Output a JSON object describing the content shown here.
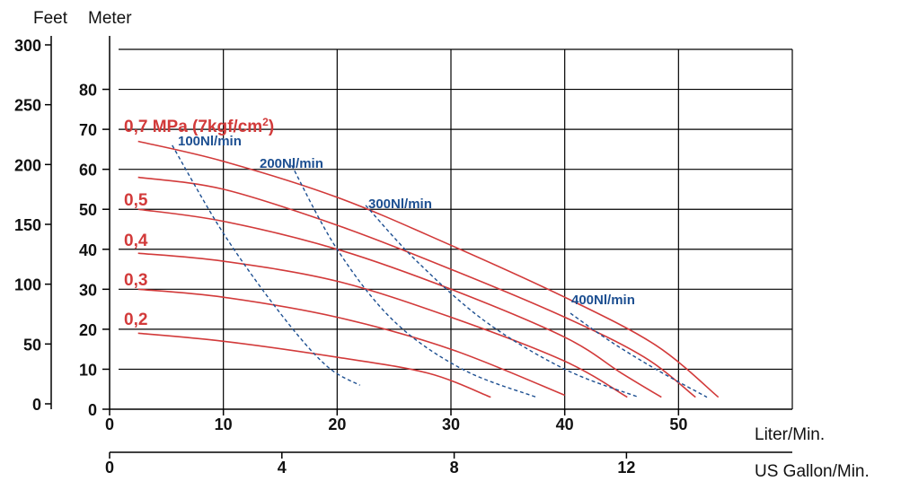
{
  "chart_data": {
    "type": "line",
    "title": "",
    "colors": {
      "pressure": "#d23a3a",
      "flow": "#1d4f91",
      "grid": "#000000"
    },
    "axes": {
      "feet": {
        "label": "Feet",
        "ticks": [
          "300",
          "250",
          "200",
          "150",
          "100",
          "50",
          "0"
        ],
        "ticks_values": [
          300,
          250,
          200,
          150,
          100,
          50,
          0
        ],
        "range": [
          0,
          300
        ]
      },
      "meter": {
        "label": "Meter",
        "ticks": [
          "80",
          "70",
          "60",
          "50",
          "40",
          "30",
          "20",
          "10",
          "0"
        ],
        "ticks_values": [
          80,
          70,
          60,
          50,
          40,
          30,
          20,
          10,
          0
        ],
        "range": [
          0,
          90
        ]
      },
      "liter": {
        "label": "Liter/Min.",
        "ticks": [
          "0",
          "10",
          "20",
          "30",
          "40",
          "50"
        ],
        "ticks_values": [
          0,
          10,
          20,
          30,
          40,
          50
        ],
        "range": [
          0,
          60
        ]
      },
      "gallon": {
        "label": "US Gallon/Min.",
        "ticks": [
          "0",
          "4",
          "8",
          "12"
        ],
        "ticks_values": [
          0,
          4,
          8,
          12
        ],
        "range": [
          0,
          15.85
        ]
      }
    },
    "grid": true,
    "series": [
      {
        "name": "0,7 MPa (7kgf/cm²)",
        "kind": "pressure",
        "label_words": [
          "0,7 MPa (7kgf/cm",
          "2",
          ")"
        ],
        "x": [
          2.5,
          10,
          20,
          30,
          40,
          48,
          53.5
        ],
        "y": [
          67,
          62,
          53,
          41,
          28,
          16,
          3
        ]
      },
      {
        "name": "",
        "kind": "pressure",
        "x": [
          2.5,
          10,
          20,
          30,
          40,
          47,
          51.5
        ],
        "y": [
          58,
          55,
          46,
          35,
          23,
          13,
          3
        ]
      },
      {
        "name": "0,5",
        "kind": "pressure",
        "x": [
          2.5,
          10,
          20,
          30,
          40,
          45,
          48.5
        ],
        "y": [
          50,
          47,
          40,
          30,
          18,
          9,
          3
        ]
      },
      {
        "name": "0,4",
        "kind": "pressure",
        "x": [
          2.5,
          10,
          20,
          30,
          40,
          45.5
        ],
        "y": [
          39,
          37,
          32,
          23,
          12,
          3
        ]
      },
      {
        "name": "0,3",
        "kind": "pressure",
        "x": [
          2.5,
          10,
          20,
          30,
          40
        ],
        "y": [
          30,
          28,
          23,
          15,
          3.5
        ]
      },
      {
        "name": "0,2",
        "kind": "pressure",
        "x": [
          2.5,
          10,
          20,
          28,
          33.5
        ],
        "y": [
          19,
          17,
          13,
          9,
          3
        ]
      },
      {
        "name": "100Nl/min",
        "kind": "flow",
        "x": [
          5.5,
          10,
          15,
          19,
          22
        ],
        "y": [
          66,
          44,
          24,
          11,
          6
        ]
      },
      {
        "name": "200Nl/min",
        "kind": "flow",
        "x": [
          16,
          20,
          25,
          31,
          37.5
        ],
        "y": [
          61,
          40,
          22,
          10,
          3
        ]
      },
      {
        "name": "300Nl/min",
        "kind": "flow",
        "x": [
          22.5,
          27,
          33,
          40,
          46.5
        ],
        "y": [
          51,
          37,
          22,
          10,
          3
        ]
      },
      {
        "name": "400Nl/min",
        "kind": "flow",
        "x": [
          40.5,
          44,
          48,
          52.5
        ],
        "y": [
          24,
          17,
          10,
          3
        ]
      }
    ]
  }
}
